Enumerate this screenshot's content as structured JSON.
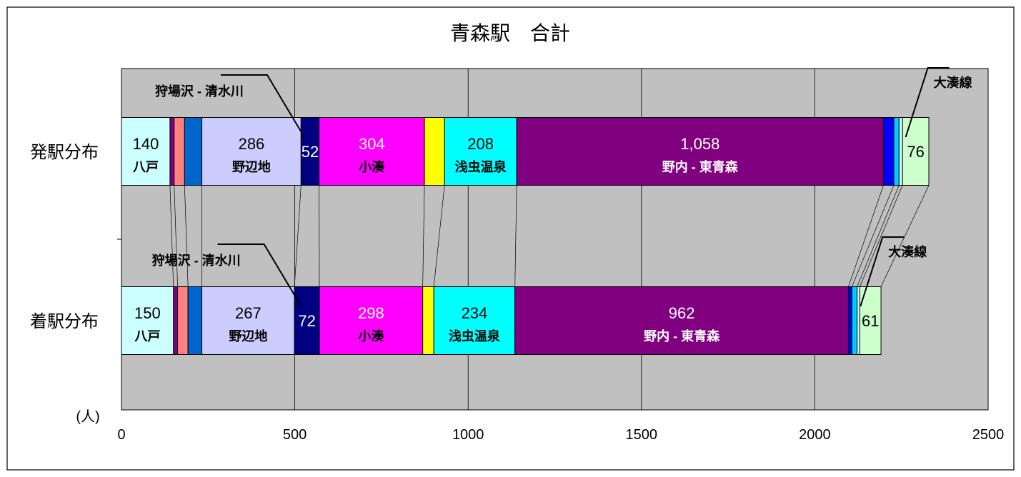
{
  "chart_data": {
    "type": "bar",
    "orientation": "horizontal",
    "stacked": true,
    "title": "青森駅　合計",
    "unit_label": "(人)",
    "xlim": [
      0,
      2500
    ],
    "x_ticks": [
      "0",
      "500",
      "1000",
      "1500",
      "2000",
      "2500"
    ],
    "grid": true,
    "bars": [
      {
        "label": "発駅分布",
        "segments": [
          {
            "value": 140,
            "color": "#CCFFFF",
            "value_label": "140",
            "name_label": "八戸",
            "value_color": "#000000",
            "name_color": "#000000"
          },
          {
            "value": 12,
            "color": "#800080"
          },
          {
            "value": 30,
            "color": "#FF8080"
          },
          {
            "value": 50,
            "color": "#0066CC"
          },
          {
            "value": 286,
            "color": "#CCCCFF",
            "value_label": "286",
            "name_label": "野辺地",
            "value_color": "#000000",
            "name_color": "#000000"
          },
          {
            "value": 52,
            "color": "#000080",
            "value_label": "52",
            "value_color": "#ffffff"
          },
          {
            "value": 304,
            "color": "#FF00FF",
            "value_label": "304",
            "name_label": "小湊",
            "value_color": "#ffffff",
            "name_color": "#000000"
          },
          {
            "value": 58,
            "color": "#FFFF00"
          },
          {
            "value": 208,
            "color": "#00FFFF",
            "value_label": "208",
            "name_label": "浅虫温泉",
            "value_color": "#000000",
            "name_color": "#000000"
          },
          {
            "value": 1058,
            "color": "#800080",
            "value_label": "1,058",
            "name_label": "野内 - 東青森",
            "value_color": "#ffffff",
            "name_color": "#ffffff"
          },
          {
            "value": 30,
            "color": "#0000FF"
          },
          {
            "value": 15,
            "color": "#00CCFF"
          },
          {
            "value": 10,
            "color": "#CCFFFF"
          },
          {
            "value": 76,
            "color": "#CCFFCC",
            "value_label": "76",
            "value_color": "#000000"
          }
        ]
      },
      {
        "label": "着駅分布",
        "segments": [
          {
            "value": 150,
            "color": "#CCFFFF",
            "value_label": "150",
            "name_label": "八戸",
            "value_color": "#000000",
            "name_color": "#000000"
          },
          {
            "value": 12,
            "color": "#800080"
          },
          {
            "value": 30,
            "color": "#FF8080"
          },
          {
            "value": 40,
            "color": "#0066CC"
          },
          {
            "value": 267,
            "color": "#CCCCFF",
            "value_label": "267",
            "name_label": "野辺地",
            "value_color": "#000000",
            "name_color": "#000000"
          },
          {
            "value": 72,
            "color": "#000080",
            "value_label": "72",
            "value_color": "#ffffff"
          },
          {
            "value": 298,
            "color": "#FF00FF",
            "value_label": "298",
            "name_label": "小湊",
            "value_color": "#ffffff",
            "name_color": "#000000"
          },
          {
            "value": 32,
            "color": "#FFFF00"
          },
          {
            "value": 234,
            "color": "#00FFFF",
            "value_label": "234",
            "name_label": "浅虫温泉",
            "value_color": "#000000",
            "name_color": "#000000"
          },
          {
            "value": 962,
            "color": "#800080",
            "value_label": "962",
            "name_label": "野内 - 東青森",
            "value_color": "#ffffff",
            "name_color": "#ffffff"
          },
          {
            "value": 10,
            "color": "#0000FF"
          },
          {
            "value": 15,
            "color": "#00CCFF"
          },
          {
            "value": 8,
            "color": "#CCFFFF"
          },
          {
            "value": 61,
            "color": "#CCFFCC",
            "value_label": "61",
            "value_color": "#000000"
          }
        ]
      }
    ],
    "callouts": [
      {
        "bar": 0,
        "segment": 5,
        "text": "狩場沢 - 清水川"
      },
      {
        "bar": 0,
        "segment": 13,
        "text": "大湊線"
      },
      {
        "bar": 1,
        "segment": 5,
        "text": "狩場沢 - 清水川"
      },
      {
        "bar": 1,
        "segment": 13,
        "text": "大湊線"
      }
    ],
    "colors": {
      "plot_background": "#C0C0C0",
      "grid": "#000000",
      "outline": "#000000"
    }
  }
}
